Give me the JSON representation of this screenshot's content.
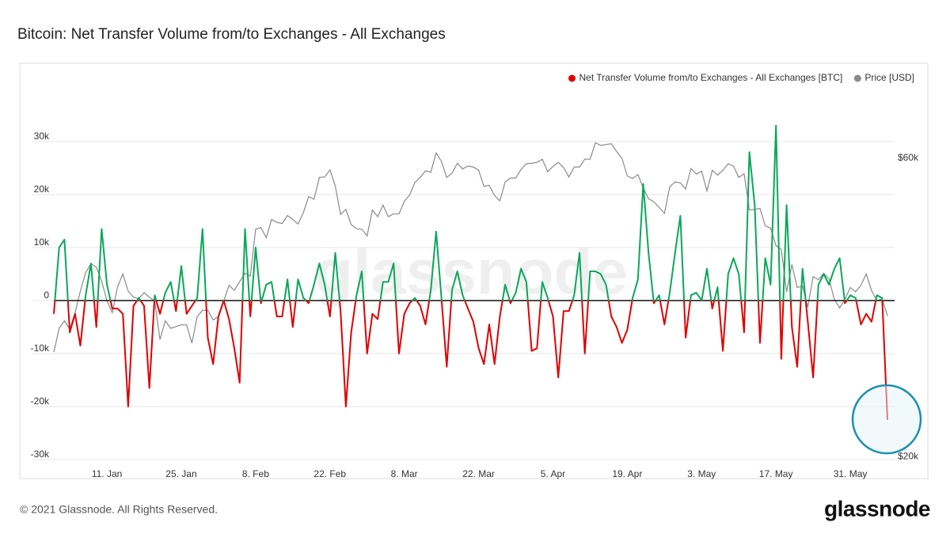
{
  "chart_data": {
    "type": "line",
    "title": "Bitcoin: Net Transfer Volume from/to Exchanges - All Exchanges",
    "watermark": "glassnode",
    "footer": "© 2021 Glassnode. All Rights Reserved.",
    "logo": "glassnode",
    "categories": [
      null,
      null,
      null,
      null,
      null,
      null,
      null,
      null,
      null,
      null,
      "11. Jan",
      null,
      null,
      null,
      null,
      null,
      null,
      null,
      null,
      null,
      null,
      null,
      null,
      null,
      "25. Jan",
      null,
      null,
      null,
      null,
      null,
      null,
      null,
      null,
      null,
      null,
      null,
      null,
      null,
      "8. Feb",
      null,
      null,
      null,
      null,
      null,
      null,
      null,
      null,
      null,
      null,
      null,
      null,
      null,
      "22. Feb",
      null,
      null,
      null,
      null,
      null,
      null,
      null,
      null,
      null,
      null,
      null,
      null,
      null,
      "8. Mar",
      null,
      null,
      null,
      null,
      null,
      null,
      null,
      null,
      null,
      null,
      null,
      null,
      null,
      "22. Mar",
      null,
      null,
      null,
      null,
      null,
      null,
      null,
      null,
      null,
      null,
      null,
      null,
      null,
      "5. Apr",
      null,
      null,
      null,
      null,
      null,
      null,
      null,
      null,
      null,
      null,
      null,
      null,
      null,
      "19. Apr",
      null,
      null,
      null,
      null,
      null,
      null,
      null,
      null,
      null,
      null,
      null,
      null,
      null,
      "3. May",
      null,
      null,
      null,
      null,
      null,
      null,
      null,
      null,
      null,
      null,
      null,
      null,
      null,
      "17. May",
      null,
      null,
      null,
      null,
      null,
      null,
      null,
      null,
      null,
      null,
      null,
      null,
      null,
      "31. May",
      null,
      null,
      null,
      null,
      null,
      null,
      null
    ],
    "series": [
      {
        "name": "Net Transfer Volume from/to Exchanges - All Exchanges [BTC]",
        "color": "#e00000",
        "positive_color": "#0aa75a",
        "values": [
          -2500,
          10000,
          11500,
          -6000,
          -2500,
          -8500,
          1000,
          7000,
          -5000,
          13500,
          3000,
          -1500,
          -1500,
          -2500,
          -20000,
          -1000,
          500,
          -1000,
          -16500,
          1000,
          -2500,
          1500,
          3500,
          -2000,
          6500,
          -2500,
          -1000,
          500,
          13500,
          -7000,
          -12000,
          -3000,
          0,
          -3500,
          -9000,
          -15500,
          13500,
          -3000,
          10000,
          -500,
          3000,
          3500,
          -3000,
          -3000,
          4000,
          -5000,
          4000,
          500,
          -500,
          3000,
          7000,
          3000,
          -3000,
          9000,
          -2000,
          -20000,
          -6000,
          1000,
          5500,
          -10000,
          -2500,
          -3500,
          3500,
          3500,
          7000,
          -10000,
          -2500,
          -500,
          500,
          -1000,
          -4500,
          2000,
          13000,
          500,
          -12500,
          2000,
          5500,
          1000,
          -1500,
          -4000,
          -9000,
          -12000,
          -4500,
          -12000,
          -3000,
          3000,
          -500,
          1500,
          6000,
          3500,
          -9500,
          -9000,
          3500,
          500,
          -3000,
          -14500,
          -2000,
          -2000,
          1000,
          9000,
          -10000,
          5500,
          5500,
          5000,
          3000,
          -3000,
          -5000,
          -8000,
          -5500,
          500,
          4000,
          22000,
          9000,
          -500,
          1000,
          -4500,
          1500,
          9000,
          16000,
          -7000,
          1000,
          1500,
          0,
          6000,
          -1500,
          2500,
          -9500,
          5000,
          8000,
          5000,
          -6000,
          28000,
          18000,
          -8000,
          8000,
          3000,
          33000,
          -11000,
          18000,
          -5000,
          -12500,
          6000,
          -4000,
          -14500,
          3000,
          5000,
          3000,
          6000,
          8000,
          -500,
          1000,
          500,
          -4500,
          -2500,
          -4000,
          1000,
          500,
          -22500
        ]
      },
      {
        "name": "Price [USD]",
        "color": "#8a8a8a",
        "axis": "y2",
        "values": [
          29400,
          32100,
          33000,
          32000,
          34000,
          36800,
          39400,
          40700,
          40200,
          38200,
          35500,
          34000,
          37400,
          39200,
          36800,
          36000,
          35800,
          36600,
          36000,
          35500,
          30800,
          33000,
          32100,
          32300,
          32500,
          32500,
          30400,
          33500,
          34300,
          34300,
          33100,
          33500,
          35500,
          37600,
          36900,
          38100,
          39300,
          38900,
          46200,
          46500,
          44800,
          47900,
          47400,
          47200,
          48600,
          47900,
          47100,
          49100,
          52100,
          51600,
          55900,
          56000,
          57500,
          54200,
          48800,
          49700,
          47000,
          46300,
          46200,
          45100,
          49600,
          48400,
          50500,
          48400,
          48900,
          48900,
          51200,
          52400,
          54900,
          55900,
          57300,
          57000,
          61200,
          59300,
          55900,
          56800,
          58900,
          57700,
          58300,
          58100,
          57400,
          54100,
          54300,
          52300,
          51300,
          55000,
          55800,
          55800,
          57600,
          58800,
          58900,
          59100,
          59800,
          57100,
          58200,
          59100,
          58000,
          56000,
          58100,
          58100,
          59800,
          59800,
          63500,
          62900,
          63100,
          63300,
          61500,
          60000,
          56200,
          55700,
          56500,
          53800,
          51700,
          51100,
          50100,
          49000,
          54000,
          55000,
          54800,
          53600,
          57800,
          56600,
          57200,
          53200,
          57400,
          56400,
          57400,
          58800,
          58300,
          55900,
          56700,
          49600,
          49700,
          49900,
          46800,
          46400,
          43500,
          42900,
          36700,
          40600,
          37300,
          37500,
          34700,
          38800,
          38400,
          39300,
          38500,
          35700,
          34600,
          35700,
          37300,
          36700,
          37600,
          39200,
          36900,
          35500,
          35800,
          33600
        ]
      }
    ],
    "ylim": [
      -30000,
      34000
    ],
    "yticks": [
      {
        "value": -30000,
        "label": "-30k"
      },
      {
        "value": -20000,
        "label": "-20k"
      },
      {
        "value": -10000,
        "label": "-10k"
      },
      0,
      {
        "value": 10000,
        "label": "10k"
      },
      {
        "value": 20000,
        "label": "20k"
      },
      {
        "value": 30000,
        "label": "30k"
      }
    ],
    "y2lim": [
      19800,
      69000
    ],
    "y2ticks": [
      {
        "value": 20000,
        "label": "$20k"
      },
      {
        "value": 60000,
        "label": "$60k"
      }
    ],
    "y2log": true,
    "grid": true,
    "legend": "top-right"
  }
}
